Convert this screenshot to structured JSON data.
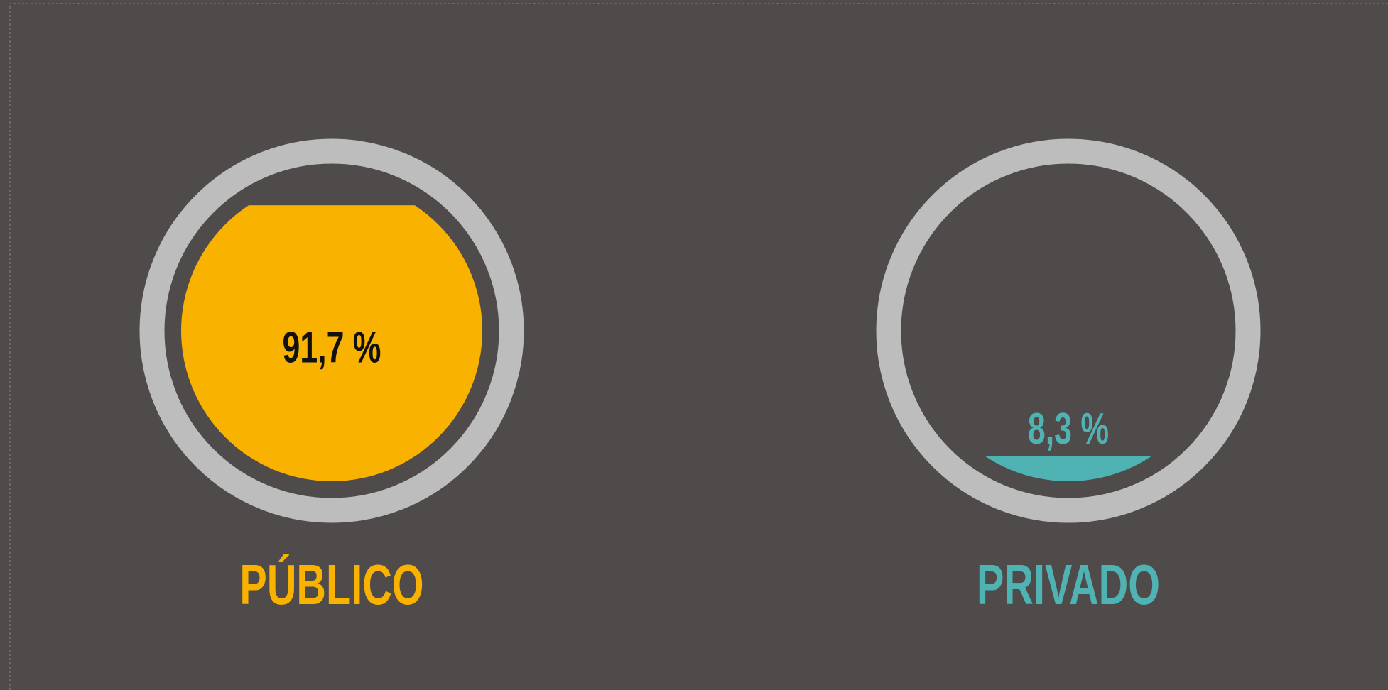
{
  "chart_data": {
    "type": "fill-gauge",
    "categories": [
      "PÚBLICO",
      "PRIVADO"
    ],
    "values": [
      91.7,
      8.3
    ],
    "value_labels": [
      "91,7 %",
      "8,3 %"
    ],
    "colors": [
      "#f9b200",
      "#4fb3b4"
    ],
    "ylim": [
      0,
      100
    ]
  }
}
